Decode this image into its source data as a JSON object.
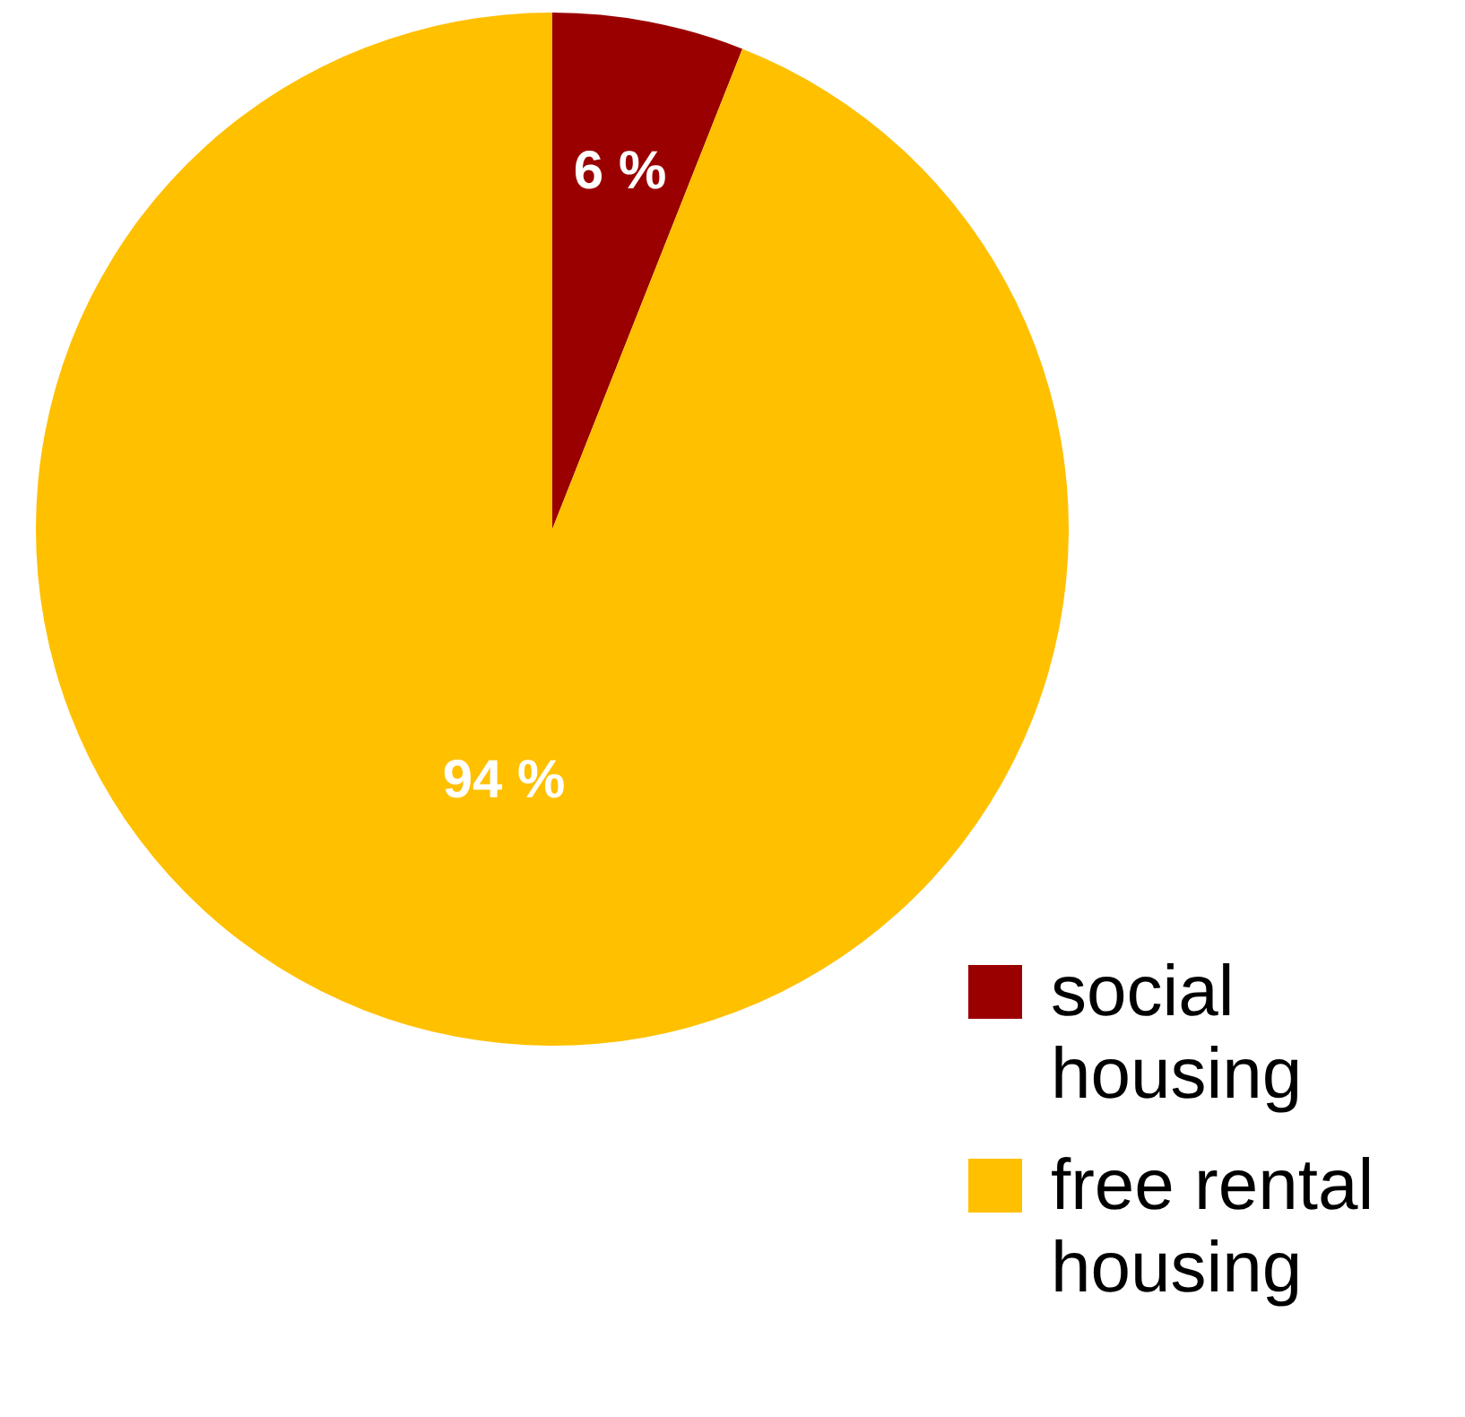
{
  "chart_data": {
    "type": "pie",
    "categories": [
      "social housing",
      "free rental housing"
    ],
    "values": [
      6,
      94
    ],
    "colors": [
      "#9b0000",
      "#ffc000"
    ],
    "value_labels": [
      "6 %",
      "94 %"
    ],
    "legend": "bottom right"
  }
}
